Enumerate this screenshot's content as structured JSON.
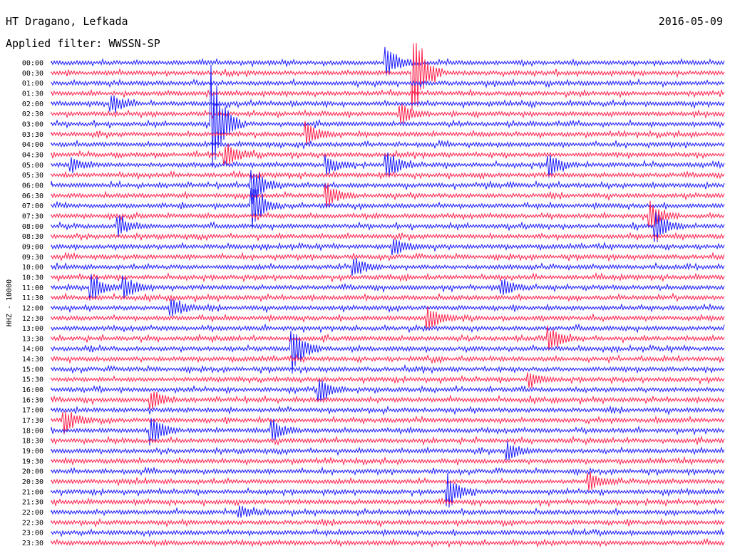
{
  "header": {
    "station": "HT Dragano, Lefkada",
    "filter": "Applied filter: WWSSN-SP",
    "date": "2016-05-09"
  },
  "chart_data": {
    "type": "line",
    "title": "HT Dragano, Lefkada",
    "subtitle": "Applied filter: WWSSN-SP",
    "ylabel": "HHZ - 10000",
    "y_tick_labels": [
      "00:00",
      "00:30",
      "01:00",
      "01:30",
      "02:00",
      "02:30",
      "03:00",
      "03:30",
      "04:00",
      "04:30",
      "05:00",
      "05:30",
      "06:00",
      "06:30",
      "07:00",
      "07:30",
      "08:00",
      "08:30",
      "09:00",
      "09:30",
      "10:00",
      "10:30",
      "11:00",
      "11:30",
      "12:00",
      "12:30",
      "13:00",
      "13:30",
      "14:00",
      "14:30",
      "15:00",
      "15:30",
      "16:00",
      "16:30",
      "17:00",
      "17:30",
      "18:00",
      "18:30",
      "19:00",
      "19:30",
      "20:00",
      "20:30",
      "21:00",
      "21:30",
      "22:00",
      "22:30",
      "23:00",
      "23:30"
    ],
    "trace_colors": [
      "#1a1aff",
      "#ff1f4b"
    ],
    "events": [
      {
        "row": 0,
        "t": 0.5,
        "amp": 1.6
      },
      {
        "row": 1,
        "t": 0.54,
        "amp": 5.0
      },
      {
        "row": 4,
        "t": 0.09,
        "amp": 1.0
      },
      {
        "row": 5,
        "t": 0.52,
        "amp": 1.2
      },
      {
        "row": 6,
        "t": 0.24,
        "amp": 6.0
      },
      {
        "row": 7,
        "t": 0.38,
        "amp": 1.3
      },
      {
        "row": 9,
        "t": 0.26,
        "amp": 1.4
      },
      {
        "row": 10,
        "t": 0.03,
        "amp": 0.8
      },
      {
        "row": 10,
        "t": 0.41,
        "amp": 0.9
      },
      {
        "row": 10,
        "t": 0.5,
        "amp": 1.5
      },
      {
        "row": 10,
        "t": 0.74,
        "amp": 1.2
      },
      {
        "row": 12,
        "t": 0.3,
        "amp": 2.0
      },
      {
        "row": 13,
        "t": 0.41,
        "amp": 1.2
      },
      {
        "row": 14,
        "t": 0.3,
        "amp": 2.5
      },
      {
        "row": 15,
        "t": 0.89,
        "amp": 1.6
      },
      {
        "row": 16,
        "t": 0.1,
        "amp": 1.1
      },
      {
        "row": 16,
        "t": 0.9,
        "amp": 1.5
      },
      {
        "row": 18,
        "t": 0.51,
        "amp": 0.8
      },
      {
        "row": 20,
        "t": 0.45,
        "amp": 1.1
      },
      {
        "row": 22,
        "t": 0.06,
        "amp": 1.5
      },
      {
        "row": 22,
        "t": 0.11,
        "amp": 1.2
      },
      {
        "row": 22,
        "t": 0.67,
        "amp": 0.9
      },
      {
        "row": 24,
        "t": 0.18,
        "amp": 1.1
      },
      {
        "row": 25,
        "t": 0.56,
        "amp": 1.4
      },
      {
        "row": 27,
        "t": 0.74,
        "amp": 1.3
      },
      {
        "row": 28,
        "t": 0.36,
        "amp": 2.5
      },
      {
        "row": 31,
        "t": 0.71,
        "amp": 0.9
      },
      {
        "row": 32,
        "t": 0.4,
        "amp": 1.2
      },
      {
        "row": 33,
        "t": 0.15,
        "amp": 1.0
      },
      {
        "row": 35,
        "t": 0.02,
        "amp": 1.3
      },
      {
        "row": 36,
        "t": 0.15,
        "amp": 1.6
      },
      {
        "row": 36,
        "t": 0.33,
        "amp": 1.1
      },
      {
        "row": 38,
        "t": 0.68,
        "amp": 0.8
      },
      {
        "row": 41,
        "t": 0.8,
        "amp": 1.0
      },
      {
        "row": 42,
        "t": 0.59,
        "amp": 1.8
      },
      {
        "row": 44,
        "t": 0.28,
        "amp": 0.6
      }
    ]
  }
}
